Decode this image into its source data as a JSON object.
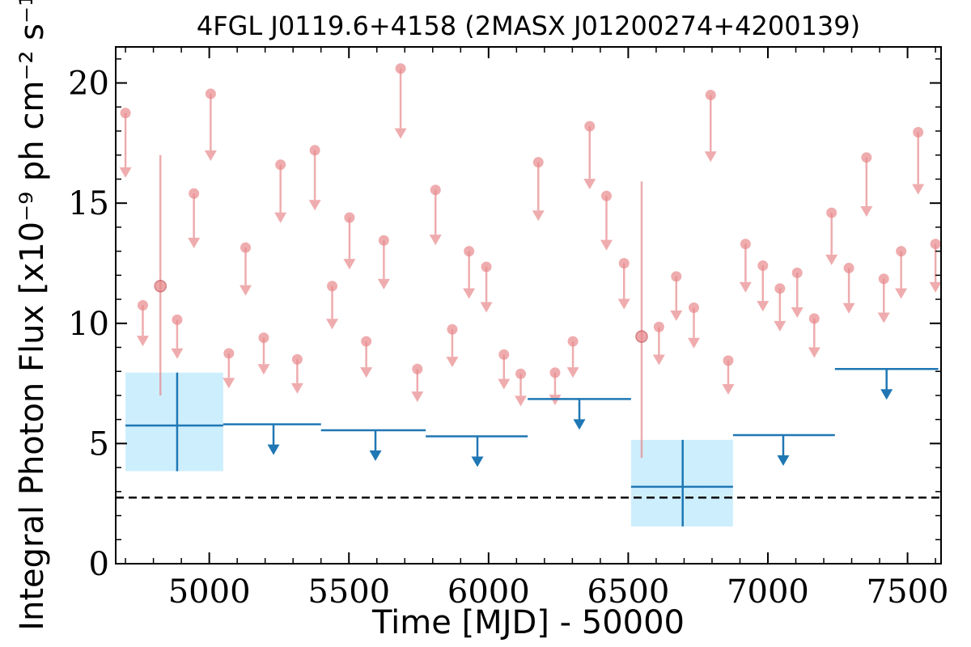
{
  "chart_data": {
    "type": "scatter",
    "title": "4FGL J0119.6+4158 (2MASX J01200274+4200139)",
    "xlabel": "Time [MJD] - 50000",
    "ylabel": "Integral Photon Flux [x10⁻⁹ ph cm⁻² s⁻¹]",
    "xlim": [
      4665,
      7620
    ],
    "ylim": [
      0,
      21.5
    ],
    "x_ticks": [
      5000,
      5500,
      6000,
      6500,
      7000,
      7500
    ],
    "y_ticks": [
      0,
      5,
      10,
      15,
      20
    ],
    "x_tick_labels": [
      "5000",
      "5500",
      "6000",
      "6500",
      "7000",
      "7500"
    ],
    "y_tick_labels": [
      "0",
      "5",
      "10",
      "15",
      "20"
    ],
    "reference_level": 2.75,
    "colors": {
      "short_bins": "#e8898c",
      "long_bins": "#1f77b4",
      "long_bins_band": "#cdeefd",
      "reference_line": "#000000"
    },
    "series": [
      {
        "points_short_bins_upper_limits": [
          [
            4700,
            18.75
          ],
          [
            4762,
            10.75
          ],
          [
            4885,
            10.15
          ],
          [
            4945,
            15.4
          ],
          [
            5005,
            19.55
          ],
          [
            5070,
            8.75
          ],
          [
            5130,
            13.15
          ],
          [
            5195,
            9.4
          ],
          [
            5255,
            16.6
          ],
          [
            5315,
            8.5
          ],
          [
            5378,
            17.2
          ],
          [
            5440,
            11.55
          ],
          [
            5502,
            14.4
          ],
          [
            5562,
            9.25
          ],
          [
            5625,
            13.45
          ],
          [
            5745,
            8.1
          ],
          [
            5685,
            20.6
          ],
          [
            5810,
            15.55
          ],
          [
            5870,
            9.75
          ],
          [
            5930,
            13.0
          ],
          [
            5992,
            12.35
          ],
          [
            6055,
            8.7
          ],
          [
            6115,
            7.9
          ],
          [
            6178,
            16.7
          ],
          [
            6238,
            7.95
          ],
          [
            6302,
            9.25
          ],
          [
            6362,
            18.2
          ],
          [
            6422,
            15.3
          ],
          [
            6485,
            12.5
          ],
          [
            6610,
            9.85
          ],
          [
            6672,
            11.95
          ],
          [
            6735,
            10.65
          ],
          [
            6795,
            19.5
          ],
          [
            6858,
            8.45
          ],
          [
            6920,
            13.3
          ],
          [
            6982,
            12.4
          ],
          [
            7043,
            11.45
          ],
          [
            7105,
            12.1
          ],
          [
            7166,
            10.2
          ],
          [
            7228,
            14.6
          ],
          [
            7290,
            12.3
          ],
          [
            7353,
            16.9
          ],
          [
            7415,
            11.85
          ],
          [
            7477,
            13.0
          ],
          [
            7538,
            17.95
          ],
          [
            7600,
            13.3
          ]
        ],
        "points_short_bins_detections": [
          {
            "x": 4825,
            "y": 11.55,
            "err_low": 7.0,
            "err_high": 17.0
          },
          {
            "x": 6548,
            "y": 9.45,
            "err_low": 4.4,
            "err_high": 15.9
          }
        ],
        "long_bins_upper_limits": [
          {
            "x_start": 5050,
            "x_end": 5400,
            "y": 5.8,
            "arrow_x": 5230
          },
          {
            "x_start": 5400,
            "x_end": 5775,
            "y": 5.55,
            "arrow_x": 5595
          },
          {
            "x_start": 5775,
            "x_end": 6140,
            "y": 5.3,
            "arrow_x": 5960
          },
          {
            "x_start": 6140,
            "x_end": 6510,
            "y": 6.85,
            "arrow_x": 6325
          },
          {
            "x_start": 6875,
            "x_end": 7240,
            "y": 5.35,
            "arrow_x": 7055
          },
          {
            "x_start": 7240,
            "x_end": 7610,
            "y": 8.1,
            "arrow_x": 7425
          }
        ],
        "long_bins_detections": [
          {
            "x_start": 4700,
            "x_end": 5050,
            "x_center": 4885,
            "y": 5.75,
            "err_low": 3.85,
            "err_high": 7.95
          },
          {
            "x_start": 6510,
            "x_end": 6875,
            "x_center": 6695,
            "y": 3.2,
            "err_low": 1.55,
            "err_high": 5.15
          }
        ]
      }
    ]
  }
}
